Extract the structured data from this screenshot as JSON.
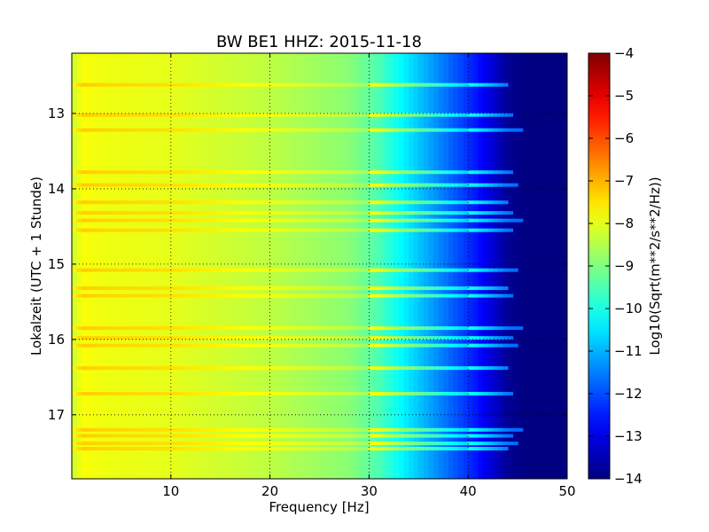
{
  "chart_data": {
    "type": "heatmap",
    "title": "BW BE1 HHZ: 2015-11-18",
    "xlabel": "Frequency [Hz]",
    "ylabel": "Lokalzeit (UTC + 1 Stunde)",
    "colorbar_label": "Log10(Sqrt(m**2/s**2/Hz))",
    "colormap": "jet",
    "grid": true,
    "xlim": [
      0,
      50
    ],
    "ylim": [
      12.2,
      17.85
    ],
    "y_inverted": true,
    "clim": [
      -14,
      -4
    ],
    "x_ticks": [
      10,
      20,
      30,
      40,
      50
    ],
    "x_tick_labels": [
      "10",
      "20",
      "30",
      "40",
      "50"
    ],
    "y_ticks": [
      13,
      14,
      15,
      16,
      17
    ],
    "y_tick_labels": [
      "13",
      "14",
      "15",
      "16",
      "17"
    ],
    "colorbar_ticks": [
      -4,
      -5,
      -6,
      -7,
      -8,
      -9,
      -10,
      -11,
      -12,
      -13,
      -14
    ],
    "colorbar_tick_labels": [
      "−4",
      "−5",
      "−6",
      "−7",
      "−8",
      "−9",
      "−10",
      "−11",
      "−12",
      "−13",
      "−14"
    ],
    "frequency_profile": {
      "frequency_hz": [
        0,
        1,
        3,
        10,
        20,
        28,
        31,
        33,
        35,
        37,
        39,
        41,
        42.5,
        44,
        46,
        50
      ],
      "log10_value": [
        -8.3,
        -7.8,
        -7.9,
        -8.0,
        -8.4,
        -8.9,
        -9.5,
        -10.2,
        -10.8,
        -11.4,
        -12.0,
        -12.6,
        -13.2,
        -13.8,
        -14.0,
        -14.0
      ]
    },
    "band_cutoff_hz": 44,
    "elevated_rows_local_time": [
      12.62,
      13.02,
      13.22,
      13.78,
      13.95,
      14.18,
      14.32,
      14.42,
      14.55,
      15.08,
      15.32,
      15.42,
      15.85,
      15.98,
      16.08,
      16.38,
      16.72,
      17.2,
      17.28,
      17.38,
      17.45
    ]
  }
}
